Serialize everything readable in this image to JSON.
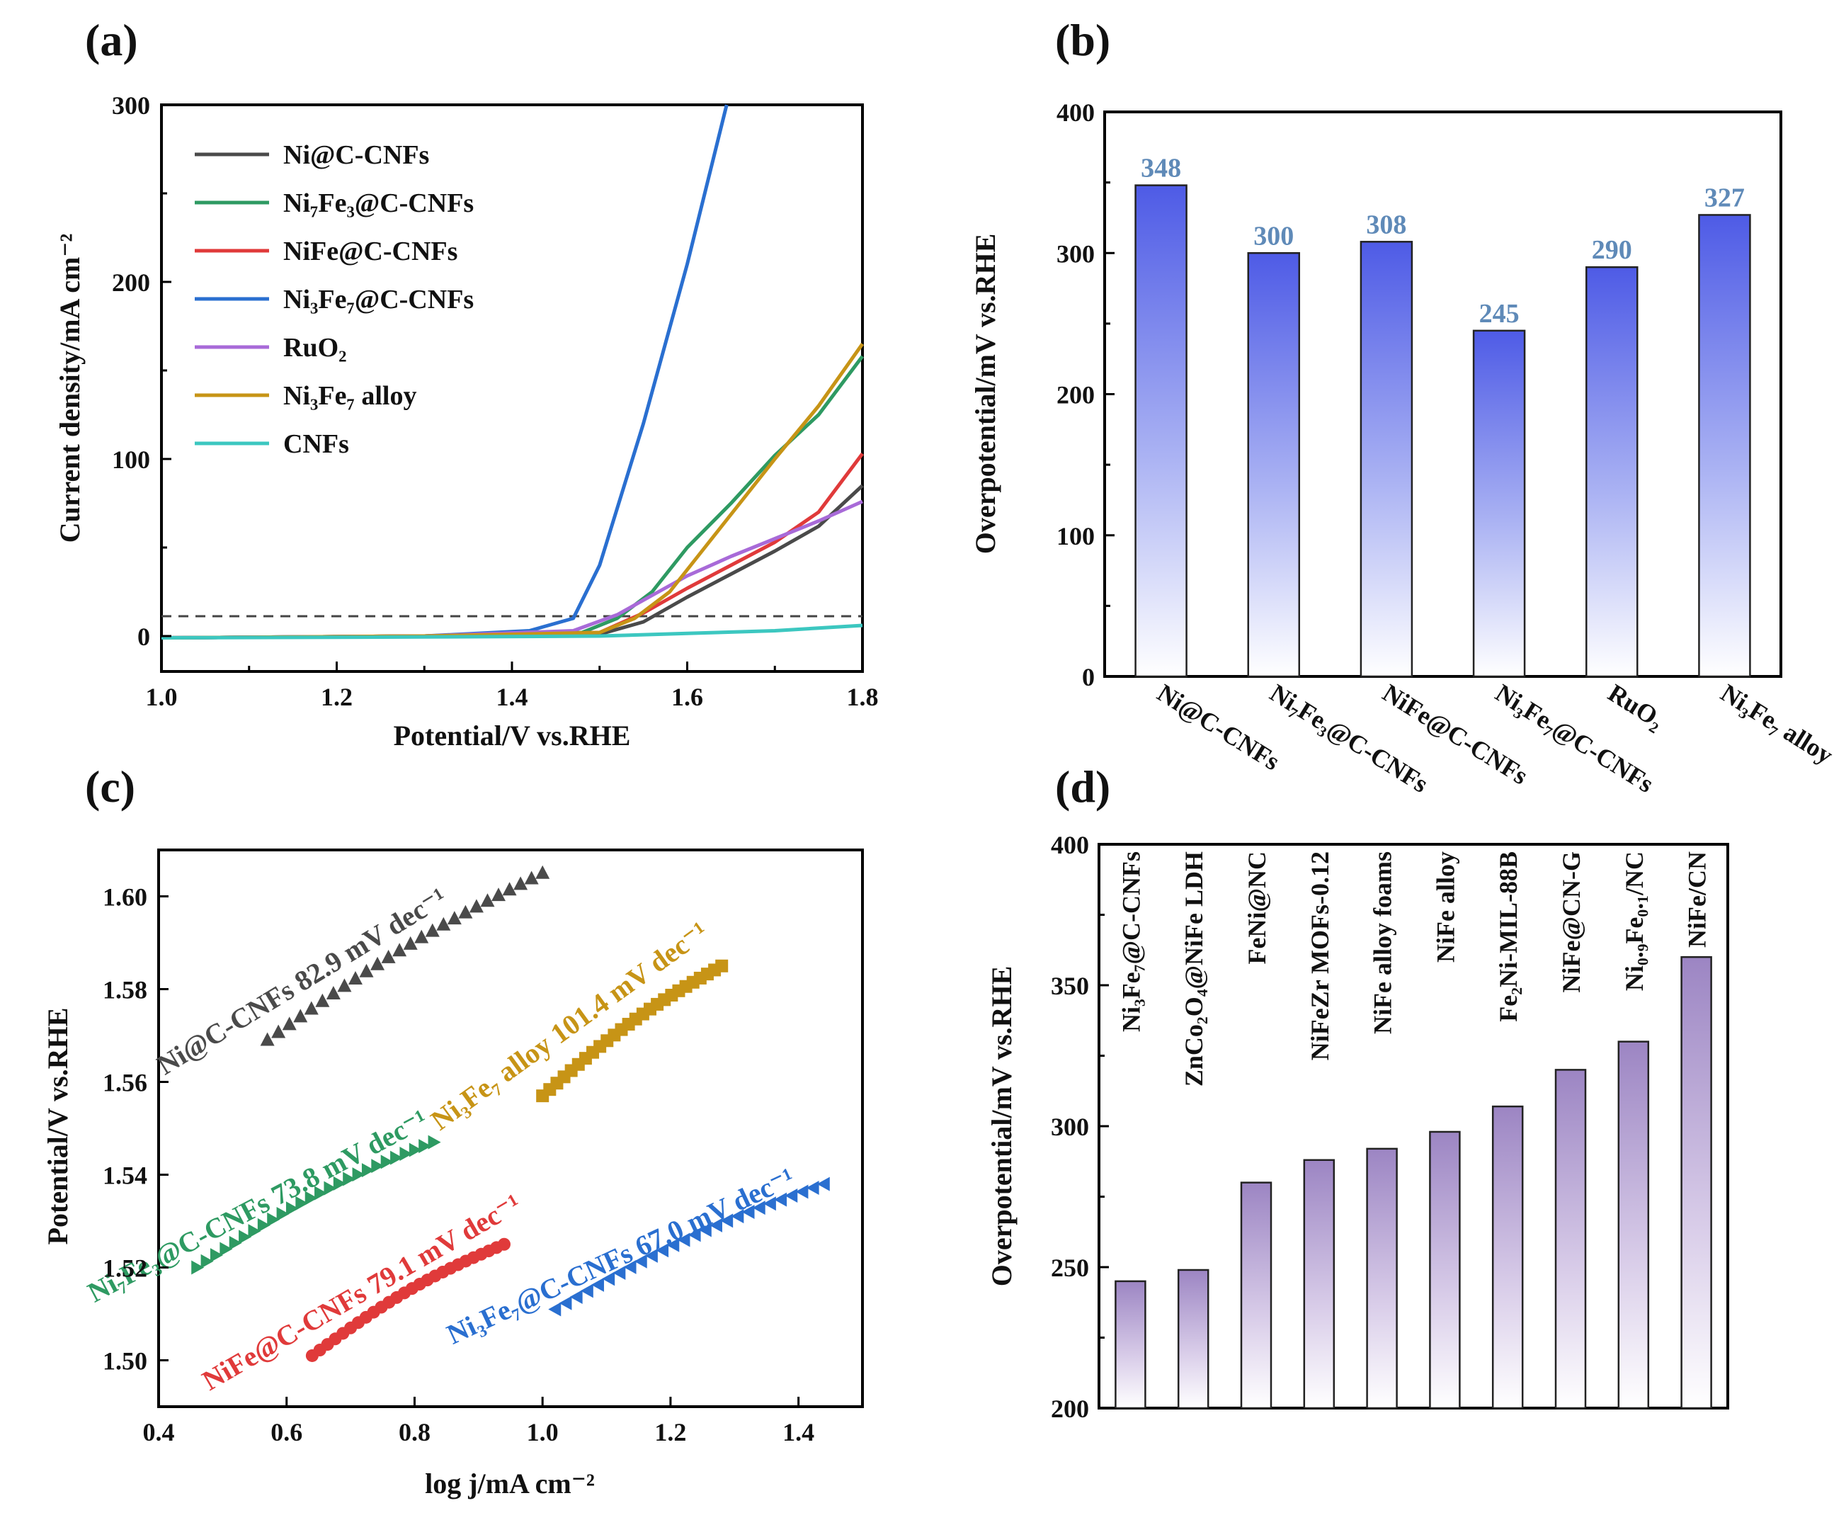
{
  "colors": {
    "Ni@C-CNFs": "#4a4a4a",
    "Ni7Fe3@C-CNFs": "#2e9a62",
    "NiFe@C-CNFs": "#e03a3a",
    "Ni3Fe7@C-CNFs": "#2a6fd0",
    "RuO2": "#a86ad8",
    "Ni3Fe7 alloy": "#c79416",
    "CNFs": "#3cc7c0",
    "bars_b": "#5864e6",
    "bars_d": "#a98fc9",
    "bar_value_label": "#5f8ab8"
  },
  "chart_data": [
    {
      "panel": "(a)",
      "type": "line",
      "xlabel": "Potential/V vs.RHE",
      "ylabel": "Current density/mA cm⁻²",
      "xlim": [
        1.0,
        1.8
      ],
      "ylim": [
        -20,
        300
      ],
      "xticks": [
        "1.0",
        "1.2",
        "1.4",
        "1.6",
        "1.8"
      ],
      "yticks": [
        "0",
        "100",
        "200",
        "300"
      ],
      "reference_line": 10,
      "legend": [
        "Ni@C-CNFs",
        "Ni₇Fe₃@C-CNFs",
        "NiFe@C-CNFs",
        "Ni₃Fe₇@C-CNFs",
        "RuO₂",
        "Ni₃Fe₇ alloy",
        "CNFs"
      ],
      "series": [
        {
          "name": "Ni@C-CNFs",
          "x": [
            1.0,
            1.3,
            1.5,
            1.55,
            1.6,
            1.65,
            1.7,
            1.75,
            1.8
          ],
          "y": [
            -1,
            0,
            1,
            8,
            22,
            35,
            48,
            62,
            85
          ]
        },
        {
          "name": "Ni7Fe3@C-CNFs",
          "x": [
            1.0,
            1.3,
            1.48,
            1.52,
            1.56,
            1.6,
            1.65,
            1.7,
            1.75,
            1.8
          ],
          "y": [
            -1,
            0,
            2,
            10,
            25,
            50,
            75,
            102,
            125,
            158
          ]
        },
        {
          "name": "NiFe@C-CNFs",
          "x": [
            1.0,
            1.3,
            1.5,
            1.55,
            1.6,
            1.65,
            1.7,
            1.75,
            1.8
          ],
          "y": [
            -1,
            0,
            2,
            13,
            27,
            40,
            53,
            70,
            103
          ]
        },
        {
          "name": "Ni3Fe7@C-CNFs",
          "x": [
            1.0,
            1.3,
            1.42,
            1.47,
            1.5,
            1.55,
            1.6,
            1.645
          ],
          "y": [
            -1,
            0,
            3,
            10,
            40,
            120,
            210,
            300
          ]
        },
        {
          "name": "RuO2",
          "x": [
            1.0,
            1.3,
            1.47,
            1.52,
            1.56,
            1.6,
            1.65,
            1.7,
            1.75,
            1.8
          ],
          "y": [
            -1,
            0,
            3,
            12,
            23,
            34,
            45,
            55,
            65,
            76
          ]
        },
        {
          "name": "Ni3Fe7 alloy",
          "x": [
            1.0,
            1.3,
            1.5,
            1.54,
            1.58,
            1.62,
            1.66,
            1.7,
            1.75,
            1.8
          ],
          "y": [
            -1,
            0,
            2,
            10,
            25,
            50,
            75,
            100,
            130,
            165
          ]
        },
        {
          "name": "CNFs",
          "x": [
            1.0,
            1.3,
            1.5,
            1.6,
            1.7,
            1.8
          ],
          "y": [
            -1,
            -0.5,
            0,
            1.5,
            3,
            6
          ]
        }
      ]
    },
    {
      "panel": "(b)",
      "type": "bar",
      "ylabel": "Overpotential/mV vs.RHE",
      "ylim": [
        0,
        400
      ],
      "yticks": [
        "0",
        "100",
        "200",
        "300",
        "400"
      ],
      "categories": [
        "Ni@C-CNFs",
        "Ni₇Fe₃@C-CNFs",
        "NiFe@C-CNFs",
        "Ni₃Fe₇@C-CNFs",
        "RuO₂",
        "Ni₃Fe₇ alloy"
      ],
      "values": [
        348,
        300,
        308,
        245,
        290,
        327
      ],
      "value_labels": [
        "348",
        "300",
        "308",
        "245",
        "290",
        "327"
      ]
    },
    {
      "panel": "(c)",
      "type": "scatter",
      "xlabel": "log j/mA cm⁻²",
      "ylabel": "Potential/V vs.RHE",
      "xlim": [
        0.4,
        1.5
      ],
      "ylim": [
        1.49,
        1.61
      ],
      "xticks": [
        "0.4",
        "0.6",
        "0.8",
        "1.0",
        "1.2",
        "1.4"
      ],
      "yticks": [
        "1.50",
        "1.52",
        "1.54",
        "1.56",
        "1.58",
        "1.60"
      ],
      "series": [
        {
          "name": "Ni@C-CNFs",
          "x0": 0.57,
          "x1": 1.0,
          "y0": 1.569,
          "y1": 1.605,
          "label": "Ni@C-CNFs 82.9 mV dec⁻¹"
        },
        {
          "name": "Ni7Fe3@C-CNFs",
          "x0": 0.46,
          "x1": 0.83,
          "y0": 1.52,
          "y1": 1.547,
          "label": "Ni₇Fe₃@C-CNFs 73.8 mV dec⁻¹"
        },
        {
          "name": "NiFe@C-CNFs",
          "x0": 0.64,
          "x1": 0.94,
          "y0": 1.501,
          "y1": 1.525,
          "label": "NiFe@C-CNFs 79.1 mV dec⁻¹"
        },
        {
          "name": "Ni3Fe7@C-CNFs",
          "x0": 1.02,
          "x1": 1.44,
          "y0": 1.511,
          "y1": 1.538,
          "label": "Ni₃Fe₇@C-CNFs 67.0 mV dec⁻¹"
        },
        {
          "name": "Ni3Fe7 alloy",
          "x0": 1.0,
          "x1": 1.28,
          "y0": 1.557,
          "y1": 1.585,
          "label": "Ni₃Fe₇ alloy 101.4 mV dec⁻¹"
        }
      ]
    },
    {
      "panel": "(d)",
      "type": "bar",
      "ylabel": "Overpotential/mV vs.RHE",
      "ylim": [
        200,
        400
      ],
      "yticks": [
        "200",
        "250",
        "300",
        "350",
        "400"
      ],
      "categories": [
        "Ni₃Fe₇@C-CNFs",
        "ZnCo₂O₄@NiFe LDH",
        "FeNi@NC",
        "NiFeZr MOFs-0.12",
        "NiFe  alloy  foams",
        "NiFe alloy",
        "Fe₂Ni-MIL-88B",
        "NiFe@CN-G",
        "Ni₀.₉Fe₀.₁/NC",
        "NiFe/CN"
      ],
      "values": [
        245,
        249,
        280,
        288,
        292,
        298,
        307,
        320,
        330,
        360
      ]
    }
  ]
}
